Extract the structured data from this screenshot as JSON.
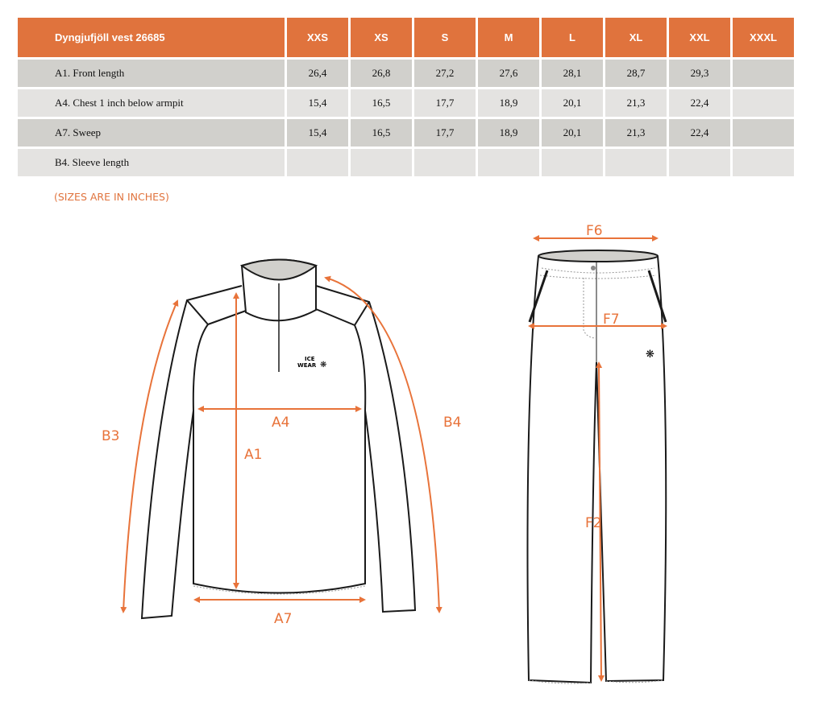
{
  "table": {
    "title": "Dyngjufjöll vest 26685",
    "sizes": [
      "XXS",
      "XS",
      "S",
      "M",
      "L",
      "XL",
      "XXL",
      "XXXL"
    ],
    "rows": [
      {
        "label": "A1. Front length",
        "values": [
          "26,4",
          "26,8",
          "27,2",
          "27,6",
          "28,1",
          "28,7",
          "29,3",
          ""
        ]
      },
      {
        "label": "A4. Chest 1 inch below armpit",
        "values": [
          "15,4",
          "16,5",
          "17,7",
          "18,9",
          "20,1",
          "21,3",
          "22,4",
          ""
        ]
      },
      {
        "label": "A7. Sweep",
        "values": [
          "15,4",
          "16,5",
          "17,7",
          "18,9",
          "20,1",
          "21,3",
          "22,4",
          ""
        ]
      },
      {
        "label": "B4. Sleeve length",
        "values": [
          "",
          "",
          "",
          "",
          "",
          "",
          "",
          ""
        ]
      }
    ]
  },
  "note": "(SIZES ARE IN INCHES)",
  "diagram": {
    "jacket_labels": {
      "a1": "A1",
      "a4": "A4",
      "a7": "A7",
      "b3": "B3",
      "b4": "B4"
    },
    "pants_labels": {
      "f6": "F6",
      "f7": "F7",
      "f2": "F2"
    },
    "logo": "ICE WEAR",
    "accent": "#e8733a",
    "header_color": "#e0733d"
  }
}
